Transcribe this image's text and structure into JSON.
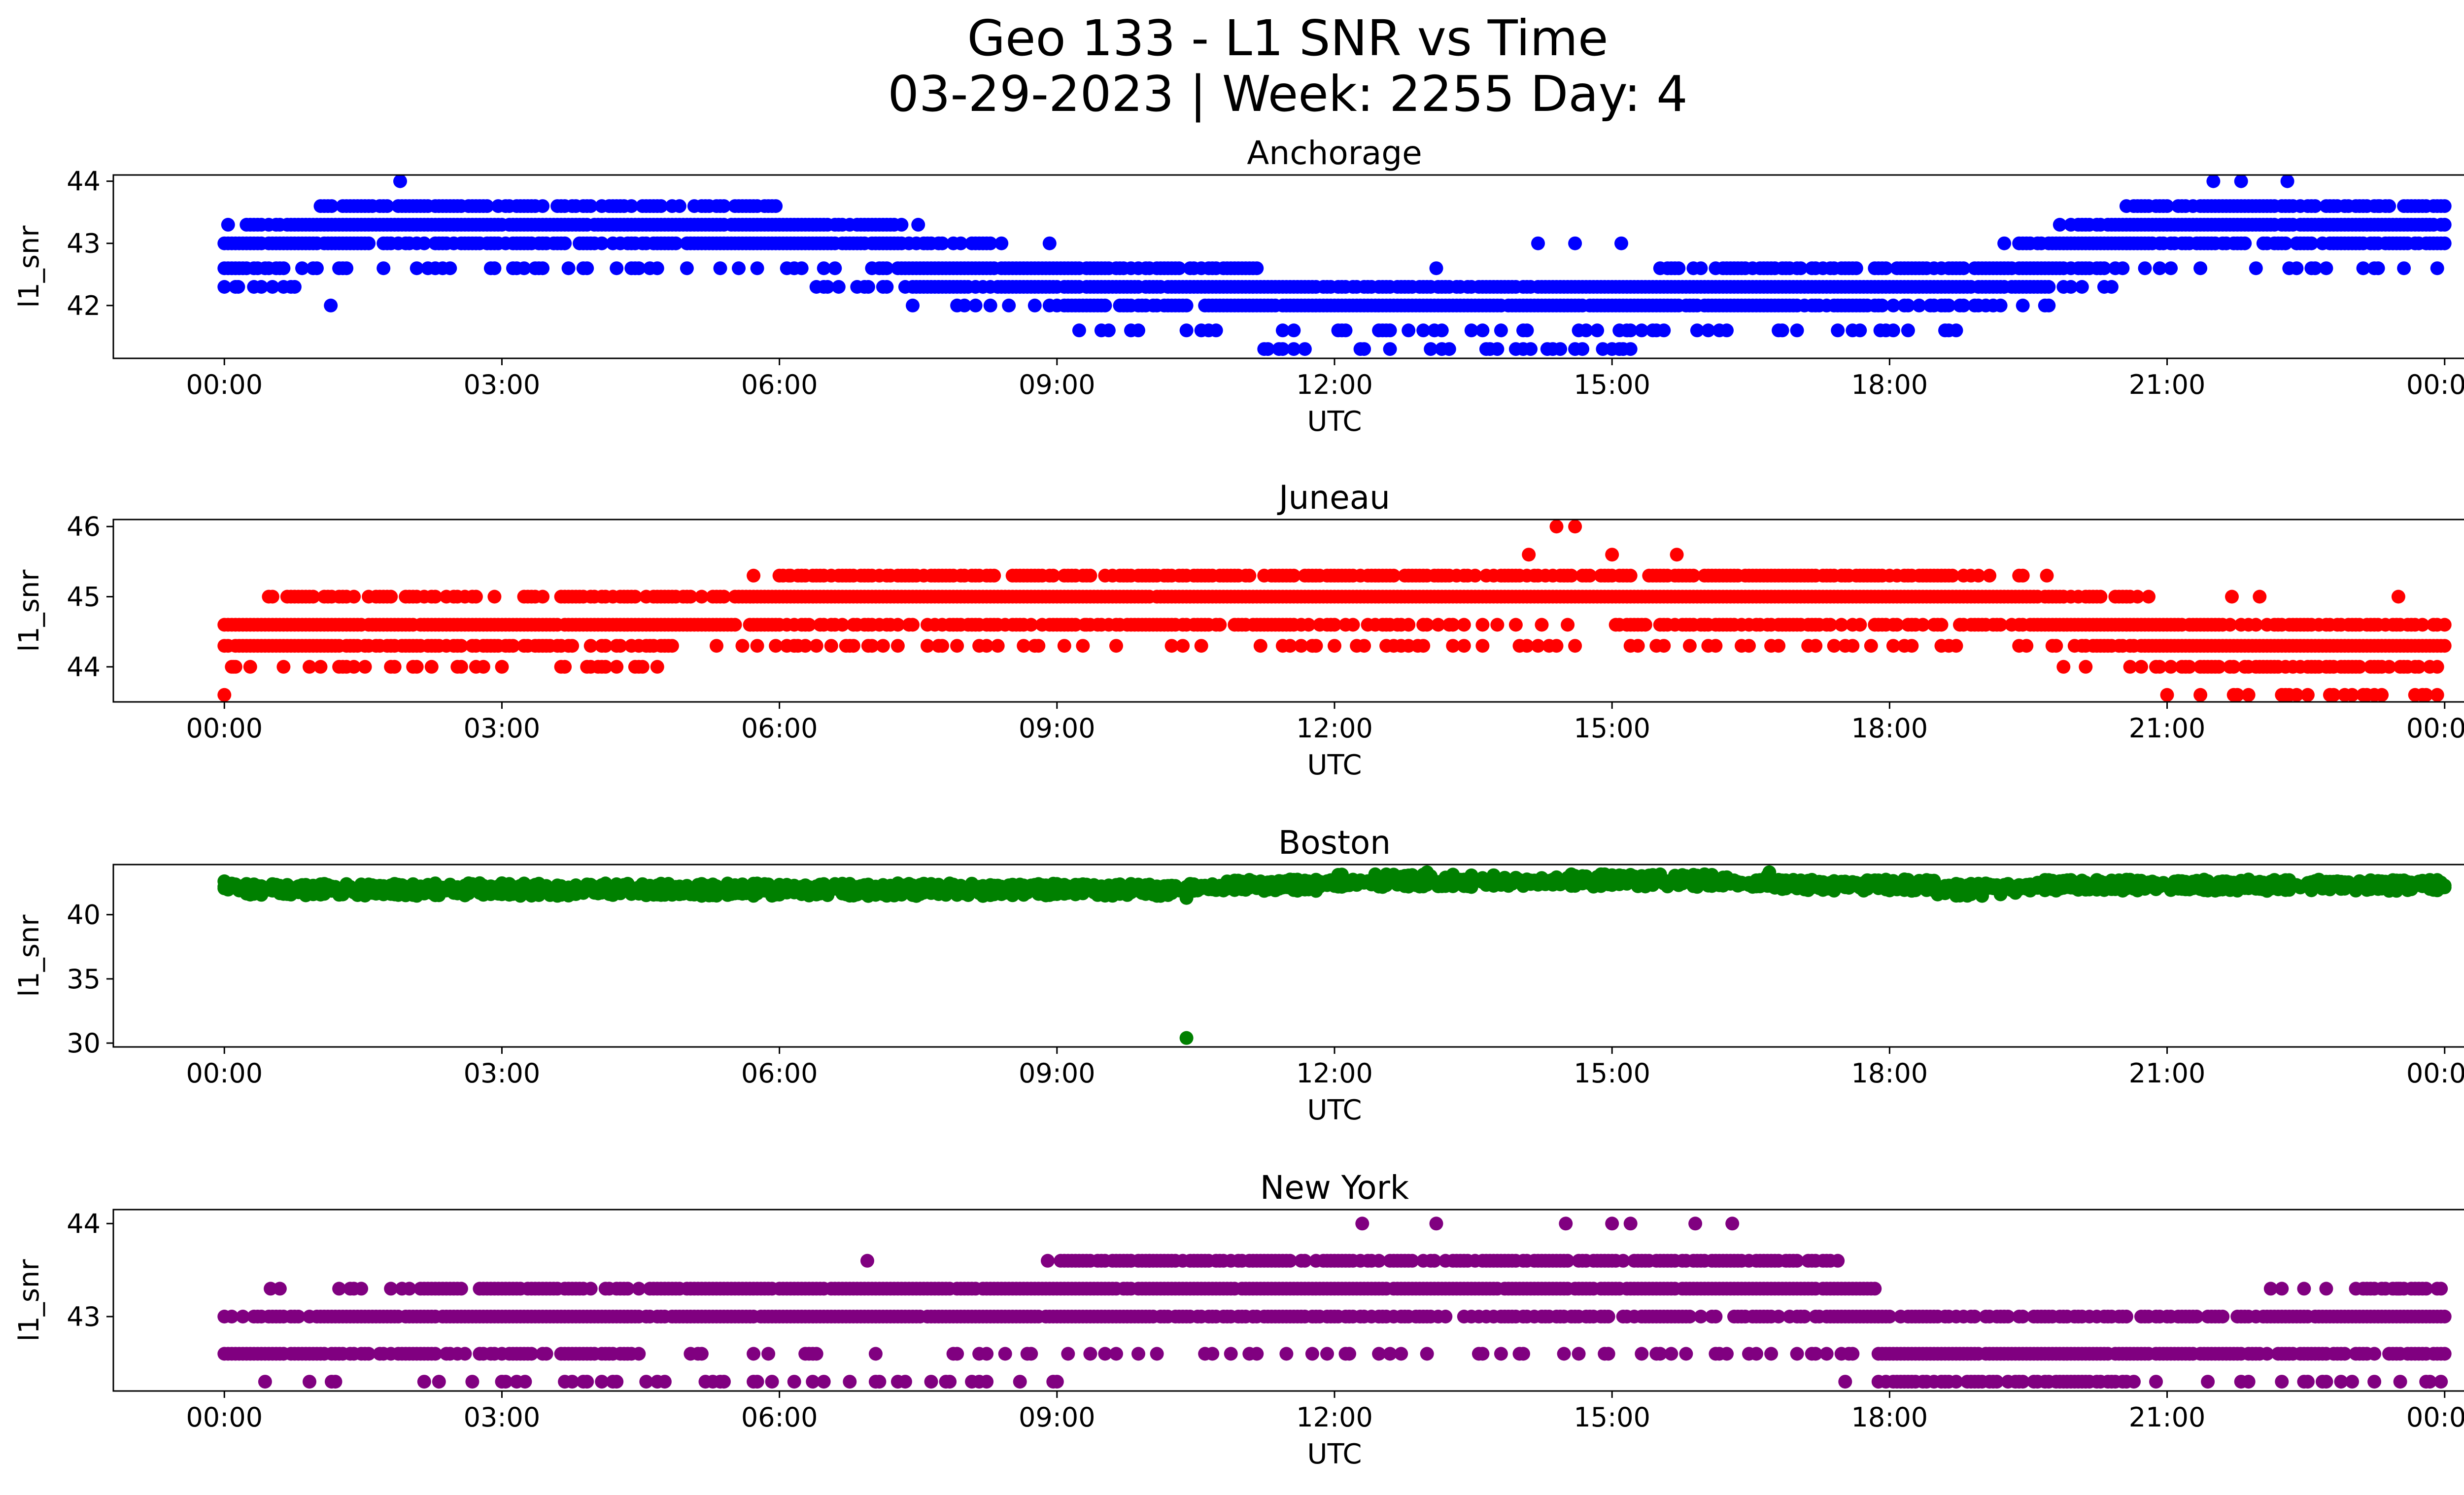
{
  "figure": {
    "title_line1": "Geo 133 - L1 SNR vs Time",
    "title_line2": "03-29-2023 | Week: 2255 Day: 4"
  },
  "chart_data": [
    {
      "type": "scatter",
      "title": "Anchorage",
      "xlabel": "UTC",
      "ylabel": "l1_snr",
      "color": "#0000ff",
      "x_ticks": [
        "00:00",
        "03:00",
        "06:00",
        "09:00",
        "12:00",
        "15:00",
        "18:00",
        "21:00",
        "00:00"
      ],
      "xlim_hours": [
        -1.2,
        25.2
      ],
      "y_ticks": [
        42,
        43,
        44
      ],
      "ylim": [
        41.15,
        44.1
      ],
      "levels": [
        41.3,
        41.6,
        42.0,
        42.3,
        42.6,
        43.0,
        43.3,
        43.6,
        44.0
      ],
      "profile_hours": [
        0,
        0.5,
        1,
        2,
        3,
        4,
        5,
        6,
        7,
        7.5,
        8.5,
        9.5,
        10.5,
        11.5,
        12.5,
        14,
        15.5,
        17,
        18,
        19,
        19.5,
        20,
        21,
        22,
        23,
        24
      ],
      "profile_values": [
        42.8,
        43.0,
        43.15,
        43.25,
        43.2,
        43.2,
        43.2,
        43.15,
        43.05,
        42.75,
        42.5,
        42.4,
        42.25,
        42.1,
        42.05,
        42.1,
        42.15,
        42.2,
        42.3,
        42.4,
        42.6,
        42.9,
        43.35,
        43.45,
        43.3,
        43.3
      ],
      "band_below": 2,
      "band_above": 1,
      "outliers": [
        [
          0.15,
          42.3
        ],
        [
          1.15,
          42.0
        ],
        [
          1.9,
          44.0
        ],
        [
          7.5,
          43.3
        ],
        [
          13.1,
          42.6
        ],
        [
          14.3,
          41.3
        ],
        [
          14.9,
          41.3
        ],
        [
          14.2,
          43.0
        ],
        [
          14.6,
          43.0
        ],
        [
          15.1,
          43.0
        ],
        [
          17.9,
          41.6
        ],
        [
          21.8,
          44.0
        ],
        [
          21.5,
          44.0
        ],
        [
          22.3,
          44.0
        ],
        [
          22.4,
          43.0
        ],
        [
          23.3,
          43.6
        ]
      ]
    },
    {
      "type": "scatter",
      "title": "Juneau",
      "xlabel": "UTC",
      "ylabel": "l1_snr",
      "color": "#ff0000",
      "x_ticks": [
        "00:00",
        "03:00",
        "06:00",
        "09:00",
        "12:00",
        "15:00",
        "18:00",
        "21:00",
        "00:00"
      ],
      "xlim_hours": [
        -1.2,
        25.2
      ],
      "y_ticks": [
        44,
        45,
        46
      ],
      "ylim": [
        43.5,
        46.1
      ],
      "levels": [
        43.6,
        44.0,
        44.3,
        44.6,
        45.0,
        45.3,
        45.6,
        46.0
      ],
      "profile_hours": [
        0,
        0.8,
        2,
        3,
        4,
        5,
        6,
        7,
        8,
        9,
        10,
        11,
        12,
        13,
        14,
        15,
        16,
        17,
        18,
        19,
        20,
        20.5,
        21,
        22,
        23,
        24
      ],
      "profile_values": [
        44.4,
        44.7,
        44.7,
        44.5,
        44.7,
        44.75,
        44.85,
        44.9,
        44.95,
        45.0,
        44.95,
        44.95,
        44.95,
        45.05,
        45.1,
        45.05,
        45.0,
        44.95,
        44.95,
        44.85,
        44.75,
        44.6,
        44.4,
        44.3,
        44.3,
        44.4
      ],
      "band_below": 2,
      "band_above": 1,
      "outliers": [
        [
          0.1,
          44.0
        ],
        [
          3.0,
          44.0
        ],
        [
          12.0,
          44.3
        ],
        [
          12.9,
          44.3
        ],
        [
          13.6,
          44.3
        ],
        [
          14.4,
          44.3
        ],
        [
          14.6,
          44.3
        ],
        [
          14.4,
          46.0
        ],
        [
          14.6,
          46.0
        ],
        [
          14.1,
          45.6
        ],
        [
          15.0,
          45.6
        ],
        [
          15.7,
          45.6
        ],
        [
          19.7,
          45.3
        ],
        [
          21.7,
          45.0
        ],
        [
          22.0,
          45.0
        ],
        [
          23.5,
          45.0
        ],
        [
          22.8,
          43.6
        ],
        [
          6.1,
          45.3
        ],
        [
          9.3,
          44.6
        ],
        [
          17.0,
          44.6
        ]
      ]
    },
    {
      "type": "scatter",
      "title": "Boston",
      "xlabel": "UTC",
      "ylabel": "l1_snr",
      "color": "#008000",
      "x_ticks": [
        "00:00",
        "03:00",
        "06:00",
        "09:00",
        "12:00",
        "15:00",
        "18:00",
        "21:00",
        "00:00"
      ],
      "xlim_hours": [
        -1.2,
        25.2
      ],
      "y_ticks": [
        30,
        35,
        40
      ],
      "ylim": [
        29.7,
        43.9
      ],
      "levels": [
        41.3,
        41.6,
        42.0,
        42.3,
        42.6,
        43.0
      ],
      "profile_hours": [
        0,
        1,
        2,
        3,
        4,
        5,
        6,
        7,
        8,
        9,
        10,
        11,
        12,
        13,
        14,
        15,
        16,
        17,
        18,
        19,
        20,
        21,
        22,
        23,
        24
      ],
      "profile_values": [
        42.1,
        41.9,
        41.9,
        42.0,
        41.9,
        42.0,
        42.0,
        41.9,
        42.0,
        42.0,
        42.0,
        42.2,
        42.5,
        42.6,
        42.5,
        42.6,
        42.6,
        42.4,
        42.2,
        42.1,
        42.2,
        42.3,
        42.3,
        42.2,
        42.3
      ],
      "band_below": 1,
      "band_above": 1,
      "outliers": [
        [
          10.4,
          30.4
        ],
        [
          10.4,
          41.3
        ],
        [
          0.0,
          42.6
        ],
        [
          13.0,
          43.3
        ],
        [
          16.7,
          43.3
        ]
      ]
    },
    {
      "type": "scatter",
      "title": "New York",
      "xlabel": "UTC",
      "ylabel": "l1_snr",
      "color": "#800080",
      "x_ticks": [
        "00:00",
        "03:00",
        "06:00",
        "09:00",
        "12:00",
        "15:00",
        "18:00",
        "21:00",
        "00:00"
      ],
      "xlim_hours": [
        -1.2,
        25.2
      ],
      "y_ticks": [
        43,
        44
      ],
      "y_tick_labels": [
        "43",
        "44"
      ],
      "ylim": [
        42.2,
        44.15
      ],
      "levels": [
        42.3,
        42.6,
        43.0,
        43.3,
        43.6,
        44.0
      ],
      "profile_hours": [
        0,
        1,
        2,
        3,
        4,
        5,
        6,
        7,
        8,
        9,
        10,
        11,
        12,
        13,
        14,
        15,
        16,
        17,
        17.6,
        18,
        19,
        20,
        21,
        22,
        23,
        24
      ],
      "profile_values": [
        42.75,
        42.8,
        42.85,
        42.95,
        43.0,
        43.1,
        43.15,
        43.15,
        43.15,
        43.15,
        43.2,
        43.3,
        43.35,
        43.35,
        43.3,
        43.35,
        43.35,
        43.3,
        43.1,
        42.7,
        42.6,
        42.65,
        42.8,
        42.8,
        42.85,
        42.85
      ],
      "band_below": 2,
      "band_above": 1,
      "outliers": [
        [
          6.95,
          43.6
        ],
        [
          8.9,
          43.6
        ],
        [
          9.2,
          43.6
        ],
        [
          9.8,
          43.6
        ],
        [
          10.0,
          43.6
        ],
        [
          12.3,
          44.0
        ],
        [
          13.1,
          44.0
        ],
        [
          14.5,
          44.0
        ],
        [
          15.0,
          44.0
        ],
        [
          15.2,
          44.0
        ],
        [
          15.9,
          44.0
        ],
        [
          16.3,
          44.0
        ],
        [
          13.6,
          42.6
        ],
        [
          17.0,
          42.6
        ],
        [
          0.5,
          43.3
        ],
        [
          0.6,
          43.3
        ],
        [
          3.0,
          42.3
        ],
        [
          3.25,
          42.3
        ],
        [
          23.5,
          43.3
        ]
      ]
    }
  ]
}
